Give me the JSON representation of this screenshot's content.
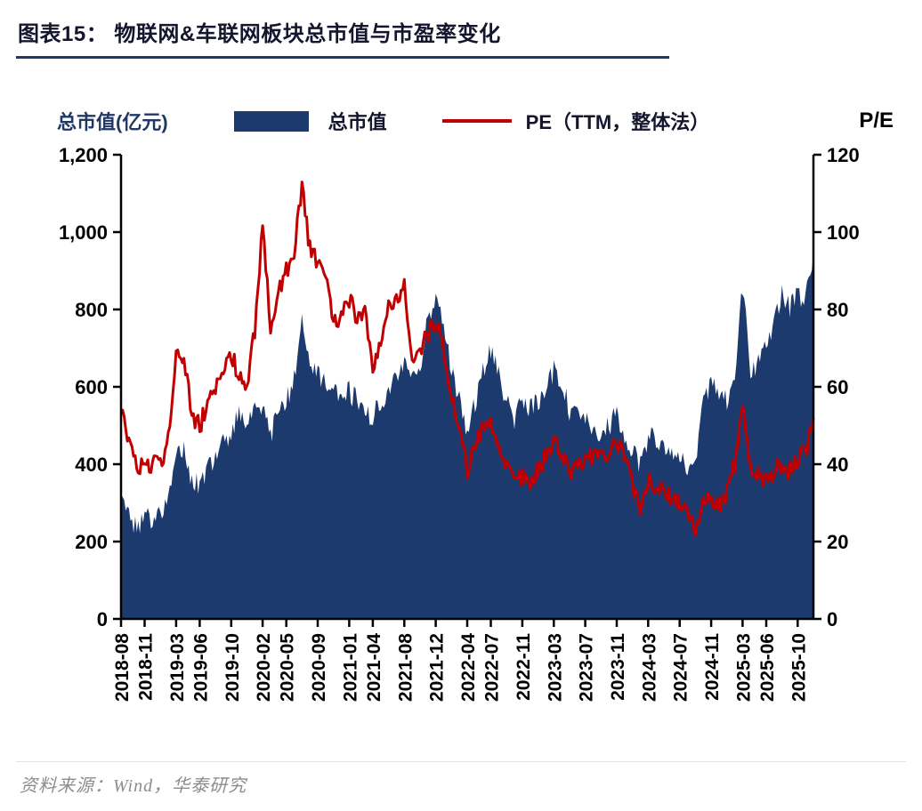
{
  "page": {
    "title": "图表15：  物联网&车联网板块总市值与市盈率变化",
    "source": "资料来源：Wind，华泰研究"
  },
  "legend": {
    "left_axis_title": "总市值(亿元)",
    "area_series_label": "总市值",
    "line_series_label": "PE（TTM，整体法）",
    "right_axis_title": "P/E"
  },
  "colors": {
    "area_fill": "#1C3A6E",
    "pe_line": "#C00000",
    "navy_accent": "#1F3864",
    "axis": "#000000",
    "tick_text": "#000000",
    "source_text": "#8C8C8C"
  },
  "chart_data": {
    "type": "area",
    "title": "物联网&车联网板块总市值与市盈率变化",
    "x_unit": "month",
    "values_start": "2018-08",
    "values_end": "2025-12",
    "values_interval_months": 1,
    "x_tick_labels": [
      "2018-08",
      "2018-11",
      "2019-03",
      "2019-06",
      "2019-10",
      "2020-02",
      "2020-05",
      "2020-09",
      "2021-01",
      "2021-04",
      "2021-08",
      "2021-12",
      "2022-04",
      "2022-07",
      "2022-11",
      "2023-03",
      "2023-07",
      "2023-11",
      "2024-03",
      "2024-07",
      "2024-11",
      "2025-03",
      "2025-06",
      "2025-10"
    ],
    "x_tick_month_index": [
      0,
      3,
      7,
      10,
      14,
      18,
      21,
      25,
      29,
      32,
      36,
      40,
      44,
      47,
      51,
      55,
      59,
      63,
      67,
      71,
      75,
      79,
      82,
      86
    ],
    "left_axis": {
      "label": "总市值(亿元)",
      "min": 0,
      "max": 1200,
      "ticks": [
        0,
        200,
        400,
        600,
        800,
        1000,
        1200
      ]
    },
    "right_axis": {
      "label": "P/E",
      "min": 0,
      "max": 120,
      "ticks": [
        0,
        20,
        40,
        60,
        80,
        100,
        120
      ]
    },
    "legend_position": "top",
    "grid": false,
    "series": [
      {
        "name": "总市值",
        "type": "area",
        "axis": "left",
        "unit": "亿元",
        "values": [
          300,
          270,
          235,
          265,
          255,
          270,
          330,
          430,
          440,
          360,
          350,
          390,
          420,
          450,
          480,
          530,
          500,
          540,
          560,
          480,
          520,
          560,
          620,
          770,
          660,
          640,
          600,
          590,
          570,
          590,
          560,
          540,
          520,
          560,
          600,
          640,
          650,
          620,
          640,
          780,
          830,
          760,
          640,
          560,
          490,
          560,
          640,
          700,
          640,
          560,
          520,
          560,
          540,
          560,
          600,
          640,
          620,
          540,
          560,
          520,
          500,
          480,
          500,
          530,
          480,
          430,
          400,
          470,
          460,
          440,
          420,
          430,
          400,
          390,
          560,
          600,
          580,
          560,
          640,
          860,
          640,
          660,
          700,
          760,
          850,
          800,
          840,
          820,
          950
        ]
      },
      {
        "name": "PE（TTM，整体法）",
        "type": "line",
        "axis": "right",
        "values": [
          53,
          47,
          38,
          41,
          40,
          40,
          46,
          68,
          68,
          52,
          50,
          55,
          60,
          65,
          68,
          63,
          61,
          75,
          102,
          76,
          85,
          90,
          95,
          111,
          96,
          92,
          88,
          76,
          78,
          83,
          78,
          80,
          66,
          70,
          80,
          82,
          86,
          68,
          70,
          74,
          77,
          70,
          58,
          48,
          38,
          45,
          50,
          52,
          45,
          40,
          36,
          37,
          36,
          38,
          42,
          45,
          43,
          38,
          40,
          41,
          42,
          43,
          43,
          46,
          42,
          35,
          27,
          36,
          34,
          33,
          31,
          30,
          28,
          23,
          32,
          30,
          29,
          33,
          40,
          55,
          38,
          37,
          36,
          38,
          40,
          38,
          41,
          43,
          52
        ]
      }
    ]
  }
}
